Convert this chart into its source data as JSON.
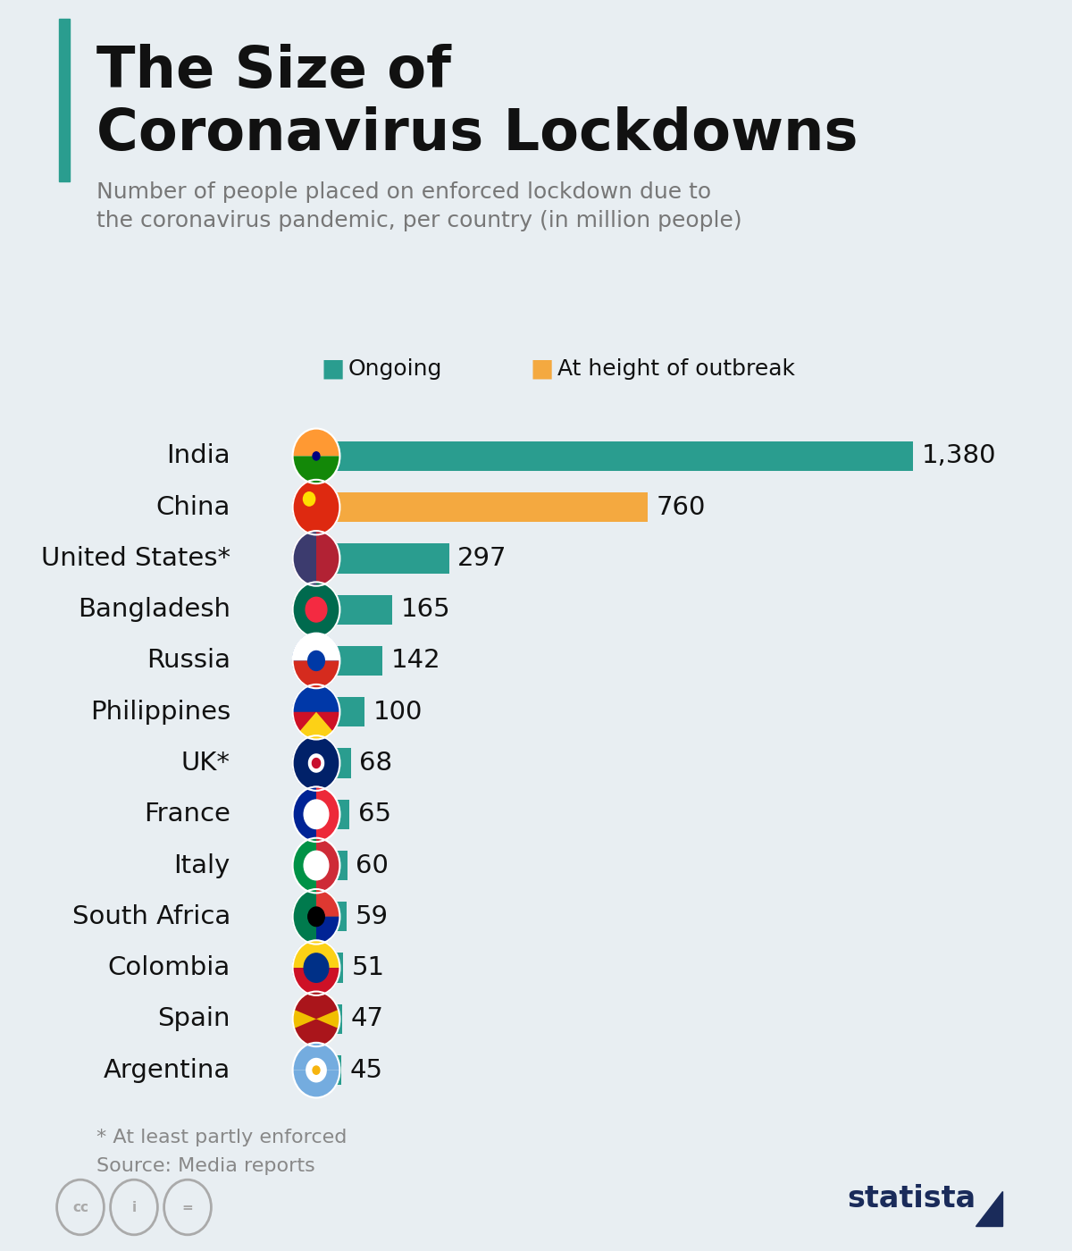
{
  "title_line1": "The Size of",
  "title_line2": "Coronavirus Lockdowns",
  "subtitle": "Number of people placed on enforced lockdown due to\nthe coronavirus pandemic, per country (in million people)",
  "background_color": "#e8eef2",
  "bar_color_ongoing": "#2a9d8f",
  "bar_color_outbreak": "#f4a940",
  "legend_ongoing": "Ongoing",
  "legend_outbreak": "At height of outbreak",
  "categories": [
    "India",
    "China",
    "United States*",
    "Bangladesh",
    "Russia",
    "Philippines",
    "UK*",
    "France",
    "Italy",
    "South Africa",
    "Colombia",
    "Spain",
    "Argentina"
  ],
  "values": [
    1380,
    760,
    297,
    165,
    142,
    100,
    68,
    65,
    60,
    59,
    51,
    47,
    45
  ],
  "bar_types": [
    "ongoing",
    "outbreak",
    "ongoing",
    "ongoing",
    "ongoing",
    "ongoing",
    "ongoing",
    "ongoing",
    "ongoing",
    "ongoing",
    "ongoing",
    "ongoing",
    "ongoing"
  ],
  "value_labels": [
    "1,380",
    "760",
    "297",
    "165",
    "142",
    "100",
    "68",
    "65",
    "60",
    "59",
    "51",
    "47",
    "45"
  ],
  "footnote1": "* At least partly enforced",
  "footnote2": "Source: Media reports",
  "title_fontsize": 46,
  "subtitle_fontsize": 18,
  "label_fontsize": 21,
  "value_fontsize": 21,
  "footnote_fontsize": 16,
  "legend_fontsize": 18,
  "xlim_max": 1550,
  "title_color": "#111111",
  "subtitle_color": "#777777",
  "label_color": "#111111",
  "value_color": "#111111",
  "footnote_color": "#888888",
  "statista_color": "#1a2b5a"
}
